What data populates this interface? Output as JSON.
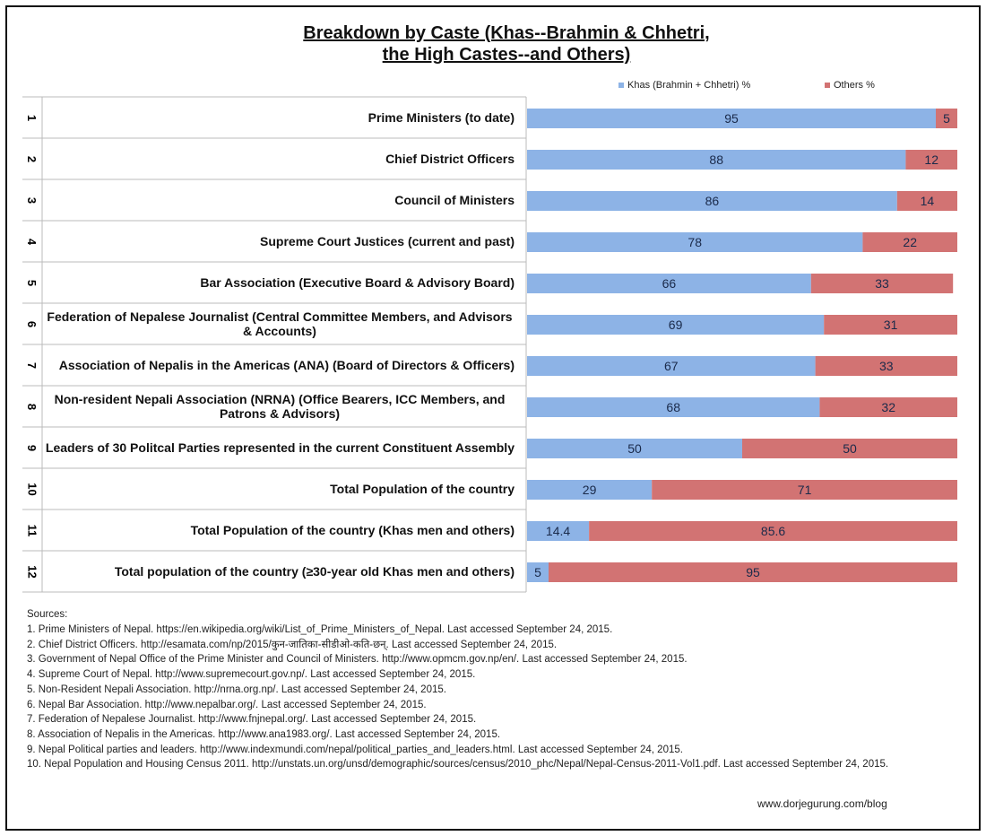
{
  "chart_data": {
    "type": "bar",
    "orientation": "horizontal",
    "stacked": true,
    "title": [
      "Breakdown by Caste (Khas--Brahmin & Chhetri,",
      "the High Castes--and Others)"
    ],
    "row_numbers": [
      1,
      2,
      3,
      4,
      5,
      6,
      7,
      8,
      9,
      10,
      11,
      12
    ],
    "categories": [
      "Prime Ministers (to date)",
      "Chief District Officers",
      "Council of Ministers",
      "Supreme Court Justices (current and past)",
      "Bar Association (Executive Board & Advisory Board)",
      "Federation of Nepalese Journalist (Central Committee Members, and Advisors & Accounts)",
      "Association of Nepalis in the Americas (ANA) (Board of Directors & Officers)",
      "Non-resident Nepali Association (NRNA) (Office Bearers, ICC Members, and Patrons & Advisors)",
      "Leaders of 30 Politcal Parties represented in the current Constituent Assembly",
      "Total Population of the country",
      "Total Population of the country (Khas men and others)",
      "Total population of the country (≥30-year old Khas men and others)"
    ],
    "series": [
      {
        "name": "Khas (Brahmin + Chhetri) %",
        "color": "#8db3e6",
        "values": [
          95,
          88,
          86,
          78,
          66,
          69,
          67,
          68,
          50,
          29,
          14.4,
          5
        ]
      },
      {
        "name": "Others %",
        "color": "#d27373",
        "values": [
          5,
          12,
          14,
          22,
          33,
          31,
          33,
          32,
          50,
          71,
          85.6,
          95
        ]
      }
    ],
    "xlim": [
      0,
      100
    ],
    "legend": "top",
    "sources_title": "Sources:",
    "sources": [
      "1. Prime Ministers of Nepal. https://en.wikipedia.org/wiki/List_of_Prime_Ministers_of_Nepal. Last accessed September 24, 2015.",
      "2. Chief District Officers. http://esamata.com/np/2015/कुन-जातिका-सीडीओ-कति-छन्. Last accessed September 24, 2015.",
      "3. Government of Nepal Office of the Prime Minister and Council of Ministers. http://www.opmcm.gov.np/en/. Last accessed September 24, 2015.",
      "4. Supreme Court of Nepal. http://www.supremecourt.gov.np/. Last accessed September 24, 2015.",
      "5. Non-Resident Nepali Association. http://nrna.org.np/. Last accessed September 24, 2015.",
      "6. Nepal Bar Association. http://www.nepalbar.org/. Last accessed September 24, 2015.",
      "7. Federation of Nepalese Journalist. http://www.fnjnepal.org/. Last accessed September 24, 2015.",
      "8. Association of Nepalis in the Americas. http://www.ana1983.org/. Last accessed September 24, 2015.",
      "9. Nepal Political parties and leaders. http://www.indexmundi.com/nepal/political_parties_and_leaders.html. Last accessed September 24, 2015.",
      "10. Nepal Population and Housing Census 2011. http://unstats.un.org/unsd/demographic/sources/census/2010_phc/Nepal/Nepal-Census-2011-Vol1.pdf. Last accessed September 24, 2015."
    ],
    "footer": "www.dorjegurung.com/blog"
  }
}
